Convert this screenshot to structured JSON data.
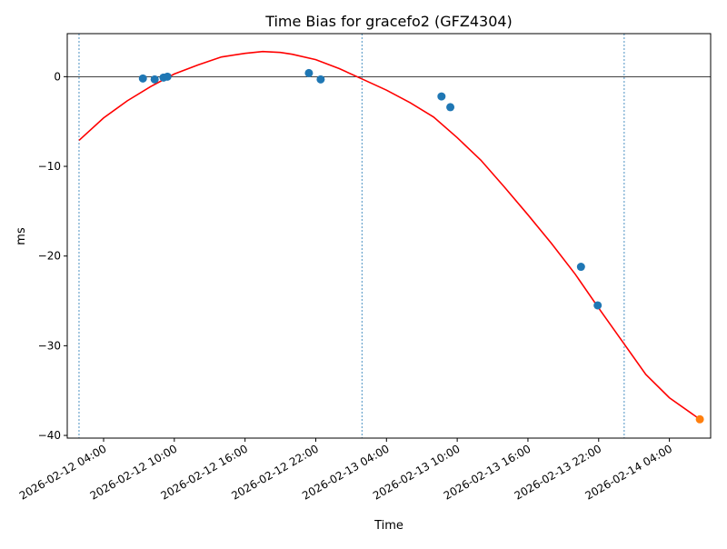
{
  "chart_data": {
    "type": "scatter",
    "title": "Time Bias for gracefo2 (GFZ4304)",
    "xlabel": "Time",
    "ylabel": "ms",
    "xlim": [
      "2026-02-12 00:55",
      "2026-02-14 07:30"
    ],
    "ylim": [
      -40.3,
      4.8
    ],
    "xticks": [
      {
        "t": "2026-02-12 04:00",
        "label": "2026-02-12 04:00"
      },
      {
        "t": "2026-02-12 10:00",
        "label": "2026-02-12 10:00"
      },
      {
        "t": "2026-02-12 16:00",
        "label": "2026-02-12 16:00"
      },
      {
        "t": "2026-02-12 22:00",
        "label": "2026-02-12 22:00"
      },
      {
        "t": "2026-02-13 04:00",
        "label": "2026-02-13 04:00"
      },
      {
        "t": "2026-02-13 10:00",
        "label": "2026-02-13 10:00"
      },
      {
        "t": "2026-02-13 16:00",
        "label": "2026-02-13 16:00"
      },
      {
        "t": "2026-02-13 22:00",
        "label": "2026-02-13 22:00"
      },
      {
        "t": "2026-02-14 04:00",
        "label": "2026-02-14 04:00"
      }
    ],
    "yticks": [
      {
        "v": 0,
        "label": "0"
      },
      {
        "v": -10,
        "label": "−10"
      },
      {
        "v": -20,
        "label": "−20"
      },
      {
        "v": -30,
        "label": "−30"
      },
      {
        "v": -40,
        "label": "−40"
      }
    ],
    "hline": 0,
    "vlines": [
      "2026-02-12 01:55",
      "2026-02-13 01:55",
      "2026-02-14 00:10"
    ],
    "grid": false,
    "series": [
      {
        "kind": "points",
        "color": "#1f77b4",
        "points": [
          {
            "x": "2026-02-12 07:20",
            "y": -0.2
          },
          {
            "x": "2026-02-12 08:20",
            "y": -0.3
          },
          {
            "x": "2026-02-12 09:05",
            "y": -0.1
          },
          {
            "x": "2026-02-12 09:25",
            "y": 0.0
          },
          {
            "x": "2026-02-12 21:25",
            "y": 0.4
          },
          {
            "x": "2026-02-12 22:25",
            "y": -0.3
          },
          {
            "x": "2026-02-13 08:40",
            "y": -2.2
          },
          {
            "x": "2026-02-13 09:25",
            "y": -3.4
          },
          {
            "x": "2026-02-13 20:30",
            "y": -21.2
          },
          {
            "x": "2026-02-13 21:55",
            "y": -25.5
          }
        ]
      },
      {
        "kind": "points",
        "color": "#ff7f0e",
        "points": [
          {
            "x": "2026-02-14 06:35",
            "y": -38.2
          }
        ]
      },
      {
        "kind": "line",
        "color": "#ff0000",
        "points": [
          {
            "x": "2026-02-12 01:55",
            "y": -7.1
          },
          {
            "x": "2026-02-12 04:00",
            "y": -4.6
          },
          {
            "x": "2026-02-12 06:00",
            "y": -2.7
          },
          {
            "x": "2026-02-12 08:00",
            "y": -1.1
          },
          {
            "x": "2026-02-12 10:00",
            "y": 0.3
          },
          {
            "x": "2026-02-12 12:00",
            "y": 1.3
          },
          {
            "x": "2026-02-12 14:00",
            "y": 2.2
          },
          {
            "x": "2026-02-12 16:00",
            "y": 2.6
          },
          {
            "x": "2026-02-12 17:30",
            "y": 2.8
          },
          {
            "x": "2026-02-12 19:00",
            "y": 2.7
          },
          {
            "x": "2026-02-12 20:00",
            "y": 2.5
          },
          {
            "x": "2026-02-12 22:00",
            "y": 1.9
          },
          {
            "x": "2026-02-13 00:00",
            "y": 0.9
          },
          {
            "x": "2026-02-13 02:00",
            "y": -0.3
          },
          {
            "x": "2026-02-13 04:00",
            "y": -1.5
          },
          {
            "x": "2026-02-13 06:00",
            "y": -2.9
          },
          {
            "x": "2026-02-13 08:00",
            "y": -4.5
          },
          {
            "x": "2026-02-13 10:00",
            "y": -6.8
          },
          {
            "x": "2026-02-13 12:00",
            "y": -9.3
          },
          {
            "x": "2026-02-13 14:00",
            "y": -12.3
          },
          {
            "x": "2026-02-13 16:00",
            "y": -15.4
          },
          {
            "x": "2026-02-13 18:00",
            "y": -18.6
          },
          {
            "x": "2026-02-13 20:00",
            "y": -22.0
          },
          {
            "x": "2026-02-13 22:00",
            "y": -25.8
          },
          {
            "x": "2026-02-14 00:00",
            "y": -29.5
          },
          {
            "x": "2026-02-14 02:00",
            "y": -33.2
          },
          {
            "x": "2026-02-14 04:00",
            "y": -35.8
          },
          {
            "x": "2026-02-14 06:35",
            "y": -38.2
          }
        ]
      }
    ]
  }
}
